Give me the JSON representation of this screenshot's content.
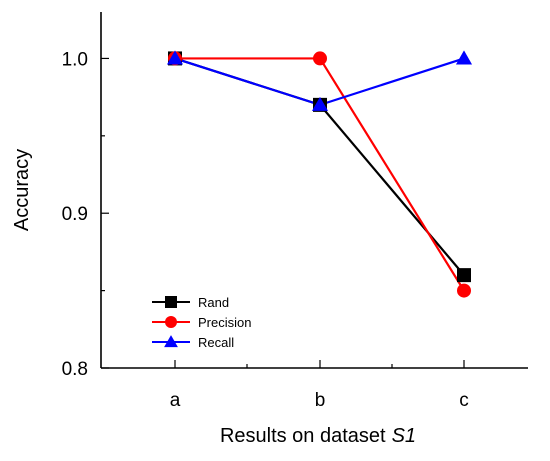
{
  "chart_data": {
    "type": "line",
    "categories": [
      "a",
      "b",
      "c"
    ],
    "xlabel": "Results on dataset",
    "xlabel_italic": "S1",
    "ylabel": "Accuracy",
    "ylim": [
      0.8,
      1.03
    ],
    "yticks": [
      0.8,
      0.9,
      1.0
    ],
    "ytick_labels": [
      "0.8",
      "0.9",
      "1.0"
    ],
    "grid": false,
    "legend_position": "bottom-left",
    "series": [
      {
        "name": "Rand",
        "values": [
          1.0,
          0.97,
          0.86
        ],
        "color": "#000000",
        "marker": "square"
      },
      {
        "name": "Precision",
        "values": [
          1.0,
          1.0,
          0.85
        ],
        "color": "#ff0000",
        "marker": "circle"
      },
      {
        "name": "Recall",
        "values": [
          1.0,
          0.97,
          1.0
        ],
        "color": "#0000ff",
        "marker": "triangle"
      }
    ]
  }
}
